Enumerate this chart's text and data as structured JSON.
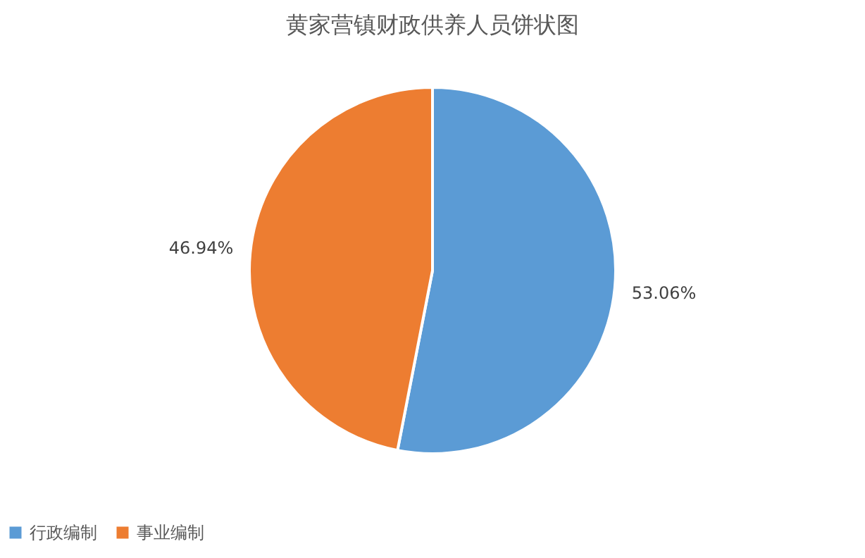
{
  "chart_data": {
    "type": "pie",
    "title": "黄家营镇财政供养人员饼状图",
    "categories": [
      "行政编制",
      "事业编制"
    ],
    "values": [
      53.06,
      46.94
    ],
    "colors": [
      "#5b9bd5",
      "#ed7d31"
    ],
    "value_labels": [
      "53.06%",
      "46.94%"
    ],
    "legend": "bottom"
  }
}
